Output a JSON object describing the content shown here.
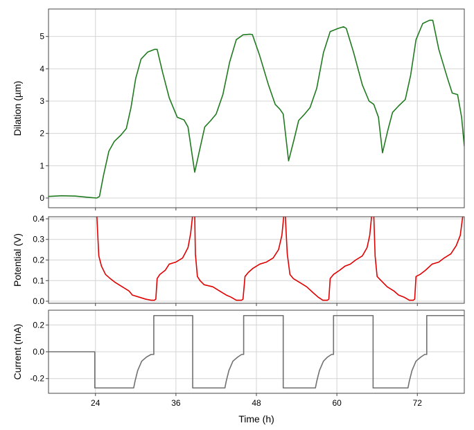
{
  "chart_data": {
    "type": "line",
    "shared_x": {
      "label": "Time (h)",
      "range": [
        17,
        79
      ],
      "ticks": [
        24,
        36,
        48,
        60,
        72
      ],
      "tick_labels": [
        "24",
        "36",
        "48",
        "60",
        "72"
      ]
    },
    "panels": [
      {
        "id": "dilation",
        "ylabel": "Dilation (µm)",
        "ylim": [
          -0.3,
          5.85
        ],
        "yticks": [
          0,
          1,
          2,
          3,
          4,
          5
        ],
        "ytick_labels": [
          "0",
          "1",
          "2",
          "3",
          "4",
          "5"
        ],
        "grid": true,
        "color": "#1f7a1f",
        "points": [
          [
            17,
            0.05
          ],
          [
            19,
            0.07
          ],
          [
            21,
            0.06
          ],
          [
            23,
            0.02
          ],
          [
            24.2,
            0.0
          ],
          [
            24.6,
            0.05
          ],
          [
            25.2,
            0.7
          ],
          [
            26,
            1.45
          ],
          [
            26.8,
            1.75
          ],
          [
            27.8,
            1.95
          ],
          [
            28.6,
            2.15
          ],
          [
            29.3,
            2.8
          ],
          [
            30.0,
            3.7
          ],
          [
            30.8,
            4.3
          ],
          [
            31.8,
            4.52
          ],
          [
            32.8,
            4.6
          ],
          [
            33.2,
            4.6
          ],
          [
            34.0,
            3.9
          ],
          [
            35.0,
            3.1
          ],
          [
            36.2,
            2.5
          ],
          [
            37.2,
            2.42
          ],
          [
            37.8,
            2.2
          ],
          [
            38.8,
            0.8
          ],
          [
            39.6,
            1.55
          ],
          [
            40.3,
            2.2
          ],
          [
            41.2,
            2.4
          ],
          [
            42.0,
            2.6
          ],
          [
            43.0,
            3.2
          ],
          [
            44.0,
            4.2
          ],
          [
            45.0,
            4.9
          ],
          [
            46.0,
            5.05
          ],
          [
            47.0,
            5.07
          ],
          [
            47.4,
            5.06
          ],
          [
            48.5,
            4.4
          ],
          [
            49.8,
            3.5
          ],
          [
            50.8,
            2.9
          ],
          [
            51.5,
            2.75
          ],
          [
            52.0,
            2.6
          ],
          [
            52.8,
            1.15
          ],
          [
            53.6,
            1.8
          ],
          [
            54.3,
            2.4
          ],
          [
            55.2,
            2.6
          ],
          [
            56.0,
            2.8
          ],
          [
            57.0,
            3.4
          ],
          [
            58.0,
            4.5
          ],
          [
            59.0,
            5.15
          ],
          [
            60.2,
            5.25
          ],
          [
            61.0,
            5.3
          ],
          [
            61.4,
            5.25
          ],
          [
            62.5,
            4.5
          ],
          [
            63.8,
            3.5
          ],
          [
            64.8,
            3.0
          ],
          [
            65.5,
            2.9
          ],
          [
            66.2,
            2.5
          ],
          [
            66.8,
            1.4
          ],
          [
            67.6,
            2.1
          ],
          [
            68.3,
            2.65
          ],
          [
            69.2,
            2.85
          ],
          [
            70.2,
            3.05
          ],
          [
            71.0,
            3.8
          ],
          [
            71.8,
            4.9
          ],
          [
            72.8,
            5.4
          ],
          [
            73.8,
            5.5
          ],
          [
            74.3,
            5.5
          ],
          [
            75.2,
            4.6
          ],
          [
            76.5,
            3.7
          ],
          [
            77.2,
            3.25
          ],
          [
            78.0,
            3.2
          ],
          [
            78.6,
            2.5
          ],
          [
            79.0,
            1.6
          ]
        ]
      },
      {
        "id": "potential",
        "ylabel": "Potential (V)",
        "ylim": [
          -0.01,
          0.41
        ],
        "yticks": [
          0.0,
          0.1,
          0.2,
          0.3,
          0.4
        ],
        "ytick_labels": [
          "0.0",
          "0.1",
          "0.2",
          "0.3",
          "0.4"
        ],
        "grid": true,
        "color": "#e00000",
        "points": [
          [
            24.2,
            0.42
          ],
          [
            24.3,
            0.35
          ],
          [
            24.5,
            0.22
          ],
          [
            24.9,
            0.17
          ],
          [
            25.5,
            0.13
          ],
          [
            26.2,
            0.11
          ],
          [
            27.0,
            0.09
          ],
          [
            28.0,
            0.07
          ],
          [
            29.0,
            0.05
          ],
          [
            29.5,
            0.03
          ],
          [
            30.5,
            0.02
          ],
          [
            31.5,
            0.01
          ],
          [
            32.3,
            0.005
          ],
          [
            32.8,
            0.005
          ],
          [
            33.0,
            0.01
          ],
          [
            33.2,
            0.11
          ],
          [
            33.6,
            0.13
          ],
          [
            34.4,
            0.15
          ],
          [
            35.0,
            0.18
          ],
          [
            36.0,
            0.19
          ],
          [
            37.0,
            0.21
          ],
          [
            37.8,
            0.26
          ],
          [
            38.2,
            0.33
          ],
          [
            38.5,
            0.42
          ],
          [
            38.8,
            0.42
          ],
          [
            38.9,
            0.23
          ],
          [
            39.2,
            0.12
          ],
          [
            39.6,
            0.1
          ],
          [
            40.2,
            0.08
          ],
          [
            41.5,
            0.07
          ],
          [
            42.5,
            0.05
          ],
          [
            43.5,
            0.03
          ],
          [
            44.2,
            0.02
          ],
          [
            45.0,
            0.005
          ],
          [
            45.8,
            0.005
          ],
          [
            46.0,
            0.01
          ],
          [
            46.3,
            0.12
          ],
          [
            46.8,
            0.14
          ],
          [
            47.5,
            0.16
          ],
          [
            48.5,
            0.18
          ],
          [
            49.5,
            0.19
          ],
          [
            50.5,
            0.21
          ],
          [
            51.3,
            0.25
          ],
          [
            51.8,
            0.32
          ],
          [
            52.1,
            0.42
          ],
          [
            52.3,
            0.42
          ],
          [
            52.6,
            0.23
          ],
          [
            53.0,
            0.13
          ],
          [
            53.5,
            0.11
          ],
          [
            54.5,
            0.09
          ],
          [
            55.5,
            0.07
          ],
          [
            56.5,
            0.04
          ],
          [
            57.2,
            0.02
          ],
          [
            57.9,
            0.005
          ],
          [
            58.6,
            0.005
          ],
          [
            58.8,
            0.01
          ],
          [
            59.0,
            0.11
          ],
          [
            59.5,
            0.13
          ],
          [
            60.4,
            0.15
          ],
          [
            61.2,
            0.17
          ],
          [
            62.0,
            0.18
          ],
          [
            62.8,
            0.2
          ],
          [
            63.8,
            0.22
          ],
          [
            64.5,
            0.26
          ],
          [
            64.9,
            0.32
          ],
          [
            65.2,
            0.42
          ],
          [
            65.5,
            0.42
          ],
          [
            65.7,
            0.22
          ],
          [
            66.0,
            0.12
          ],
          [
            66.6,
            0.1
          ],
          [
            67.5,
            0.07
          ],
          [
            68.5,
            0.05
          ],
          [
            69.2,
            0.03
          ],
          [
            70.0,
            0.02
          ],
          [
            70.8,
            0.005
          ],
          [
            71.4,
            0.005
          ],
          [
            71.6,
            0.01
          ],
          [
            71.8,
            0.12
          ],
          [
            72.4,
            0.13
          ],
          [
            73.2,
            0.15
          ],
          [
            74.2,
            0.18
          ],
          [
            75.2,
            0.19
          ],
          [
            76.0,
            0.21
          ],
          [
            77.0,
            0.23
          ],
          [
            77.8,
            0.27
          ],
          [
            78.4,
            0.32
          ],
          [
            78.8,
            0.42
          ]
        ]
      },
      {
        "id": "current",
        "ylabel": "Current (mA)",
        "ylim": [
          -0.31,
          0.31
        ],
        "yticks": [
          -0.2,
          0.0,
          0.2
        ],
        "ytick_labels": [
          "-0.2",
          "0.0",
          "0.2"
        ],
        "grid": true,
        "color": "#707070",
        "points": [
          [
            17,
            0.0
          ],
          [
            23.9,
            0.0
          ],
          [
            23.9,
            -0.27
          ],
          [
            29.7,
            -0.27
          ],
          [
            29.9,
            -0.22
          ],
          [
            30.3,
            -0.14
          ],
          [
            30.9,
            -0.07
          ],
          [
            31.6,
            -0.04
          ],
          [
            32.3,
            -0.02
          ],
          [
            32.7,
            -0.02
          ],
          [
            32.7,
            0.27
          ],
          [
            38.5,
            0.27
          ],
          [
            38.5,
            -0.27
          ],
          [
            43.3,
            -0.27
          ],
          [
            43.5,
            -0.22
          ],
          [
            43.9,
            -0.14
          ],
          [
            44.5,
            -0.07
          ],
          [
            45.2,
            -0.04
          ],
          [
            45.8,
            -0.02
          ],
          [
            46.1,
            -0.02
          ],
          [
            46.1,
            0.27
          ],
          [
            52.0,
            0.27
          ],
          [
            52.0,
            -0.27
          ],
          [
            56.8,
            -0.27
          ],
          [
            57.0,
            -0.22
          ],
          [
            57.4,
            -0.14
          ],
          [
            58.0,
            -0.07
          ],
          [
            58.6,
            -0.04
          ],
          [
            59.2,
            -0.02
          ],
          [
            59.5,
            -0.02
          ],
          [
            59.5,
            0.27
          ],
          [
            65.4,
            0.27
          ],
          [
            65.4,
            -0.27
          ],
          [
            70.6,
            -0.27
          ],
          [
            70.8,
            -0.22
          ],
          [
            71.2,
            -0.14
          ],
          [
            71.8,
            -0.07
          ],
          [
            72.5,
            -0.04
          ],
          [
            73.1,
            -0.02
          ],
          [
            73.4,
            -0.02
          ],
          [
            73.4,
            0.27
          ],
          [
            79.0,
            0.27
          ]
        ]
      }
    ]
  }
}
